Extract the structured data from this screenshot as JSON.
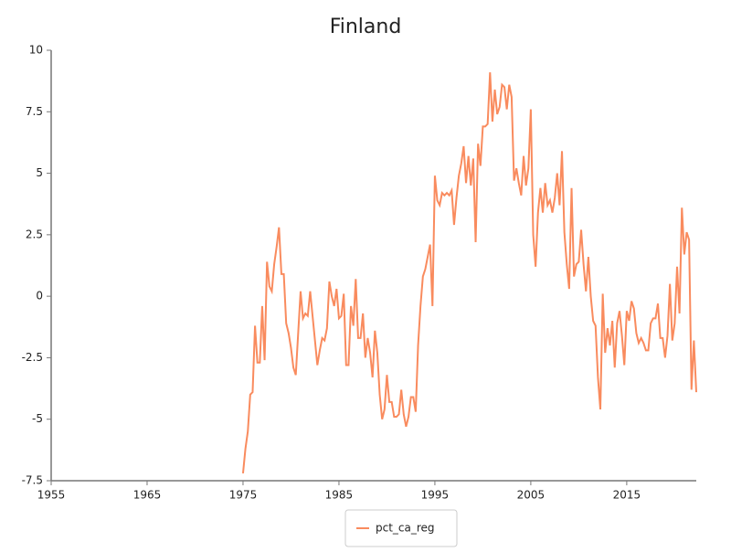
{
  "chart_data": {
    "type": "line",
    "title": "Finland",
    "x": [
      1975,
      1975.25,
      1975.5,
      1975.75,
      1976,
      1976.25,
      1976.5,
      1976.75,
      1977,
      1977.25,
      1977.5,
      1977.75,
      1978,
      1978.25,
      1978.5,
      1978.75,
      1979,
      1979.25,
      1979.5,
      1979.75,
      1980,
      1980.25,
      1980.5,
      1980.75,
      1981,
      1981.25,
      1981.5,
      1981.75,
      1982,
      1982.25,
      1982.5,
      1982.75,
      1983,
      1983.25,
      1983.5,
      1983.75,
      1984,
      1984.25,
      1984.5,
      1984.75,
      1985,
      1985.25,
      1985.5,
      1985.75,
      1986,
      1986.25,
      1986.5,
      1986.75,
      1987,
      1987.25,
      1987.5,
      1987.75,
      1988,
      1988.25,
      1988.5,
      1988.75,
      1989,
      1989.25,
      1989.5,
      1989.75,
      1990,
      1990.25,
      1990.5,
      1990.75,
      1991,
      1991.25,
      1991.5,
      1991.75,
      1992,
      1992.25,
      1992.5,
      1992.75,
      1993,
      1993.25,
      1993.5,
      1993.75,
      1994,
      1994.25,
      1994.5,
      1994.75,
      1995,
      1995.25,
      1995.5,
      1995.75,
      1996,
      1996.25,
      1996.5,
      1996.75,
      1997,
      1997.25,
      1997.5,
      1997.75,
      1998,
      1998.25,
      1998.5,
      1998.75,
      1999,
      1999.25,
      1999.5,
      1999.75,
      2000,
      2000.25,
      2000.5,
      2000.75,
      2001,
      2001.25,
      2001.5,
      2001.75,
      2002,
      2002.25,
      2002.5,
      2002.75,
      2003,
      2003.25,
      2003.5,
      2003.75,
      2004,
      2004.25,
      2004.5,
      2004.75,
      2005,
      2005.25,
      2005.5,
      2005.75,
      2006,
      2006.25,
      2006.5,
      2006.75,
      2007,
      2007.25,
      2007.5,
      2007.75,
      2008,
      2008.25,
      2008.5,
      2008.75,
      2009,
      2009.25,
      2009.5,
      2009.75,
      2010,
      2010.25,
      2010.5,
      2010.75,
      2011,
      2011.25,
      2011.5,
      2011.75,
      2012,
      2012.25,
      2012.5,
      2012.75,
      2013,
      2013.25,
      2013.5,
      2013.75,
      2014,
      2014.25,
      2014.5,
      2014.75,
      2015,
      2015.25,
      2015.5,
      2015.75,
      2016,
      2016.25,
      2016.5,
      2016.75,
      2017,
      2017.25,
      2017.5,
      2017.75,
      2018,
      2018.25,
      2018.5,
      2018.75,
      2019,
      2019.25,
      2019.5,
      2019.75,
      2020,
      2020.25,
      2020.5,
      2020.75,
      2021,
      2021.25,
      2021.5,
      2021.75,
      2022,
      2022.25
    ],
    "series": [
      {
        "name": "pct_ca_reg",
        "color": "#f98b5e",
        "values": [
          -7.2,
          -6.2,
          -5.5,
          -4.0,
          -3.9,
          -1.2,
          -2.7,
          -2.7,
          -0.4,
          -2.6,
          1.4,
          0.4,
          0.2,
          1.3,
          2.0,
          2.8,
          0.9,
          0.9,
          -1.1,
          -1.5,
          -2.1,
          -2.9,
          -3.2,
          -1.5,
          0.2,
          -0.9,
          -0.7,
          -0.8,
          0.2,
          -0.8,
          -1.8,
          -2.8,
          -2.2,
          -1.7,
          -1.8,
          -1.3,
          0.6,
          0.0,
          -0.4,
          0.3,
          -0.9,
          -0.8,
          0.1,
          -2.8,
          -2.8,
          -0.4,
          -1.2,
          0.7,
          -1.7,
          -1.7,
          -0.7,
          -2.5,
          -1.7,
          -2.3,
          -3.3,
          -1.4,
          -2.3,
          -4.0,
          -5.0,
          -4.6,
          -3.2,
          -4.3,
          -4.3,
          -4.9,
          -4.9,
          -4.8,
          -3.8,
          -4.8,
          -5.3,
          -4.9,
          -4.1,
          -4.1,
          -4.7,
          -2.0,
          -0.4,
          0.8,
          1.1,
          1.6,
          2.1,
          -0.4,
          4.9,
          3.9,
          3.7,
          4.2,
          4.1,
          4.2,
          4.1,
          4.3,
          2.9,
          4.0,
          4.9,
          5.4,
          6.1,
          4.6,
          5.7,
          4.5,
          5.6,
          2.2,
          6.2,
          5.3,
          6.9,
          6.9,
          7.0,
          9.1,
          7.1,
          8.4,
          7.4,
          7.7,
          8.6,
          8.5,
          7.6,
          8.6,
          8.1,
          4.7,
          5.2,
          4.6,
          4.1,
          5.7,
          4.5,
          5.2,
          7.6,
          2.5,
          1.2,
          3.4,
          4.4,
          3.4,
          4.6,
          3.7,
          3.9,
          3.4,
          4.0,
          5.0,
          3.7,
          5.9,
          2.6,
          1.3,
          0.3,
          4.4,
          0.8,
          1.3,
          1.4,
          2.7,
          1.3,
          0.2,
          1.6,
          0.0,
          -1.0,
          -1.2,
          -3.3,
          -4.6,
          0.1,
          -2.3,
          -1.3,
          -2.0,
          -1.0,
          -2.9,
          -1.1,
          -0.6,
          -1.6,
          -2.8,
          -0.6,
          -1.0,
          -0.2,
          -0.5,
          -1.5,
          -1.9,
          -1.7,
          -1.9,
          -2.2,
          -2.2,
          -1.1,
          -0.9,
          -0.9,
          -0.3,
          -1.7,
          -1.7,
          -2.5,
          -1.6,
          0.5,
          -1.8,
          -1.1,
          1.2,
          -0.7,
          3.6,
          1.7,
          2.6,
          2.3,
          -3.8,
          -1.8,
          -3.9
        ]
      }
    ],
    "xlim": [
      1955,
      2022.25
    ],
    "xticks": [
      1955,
      1965,
      1975,
      1985,
      1995,
      2005,
      2015
    ],
    "ylim": [
      -7.5,
      10
    ],
    "yticks": [
      -7.5,
      -5,
      -2.5,
      0,
      2.5,
      5,
      7.5,
      10
    ],
    "grid": false,
    "legend": "bottom"
  }
}
